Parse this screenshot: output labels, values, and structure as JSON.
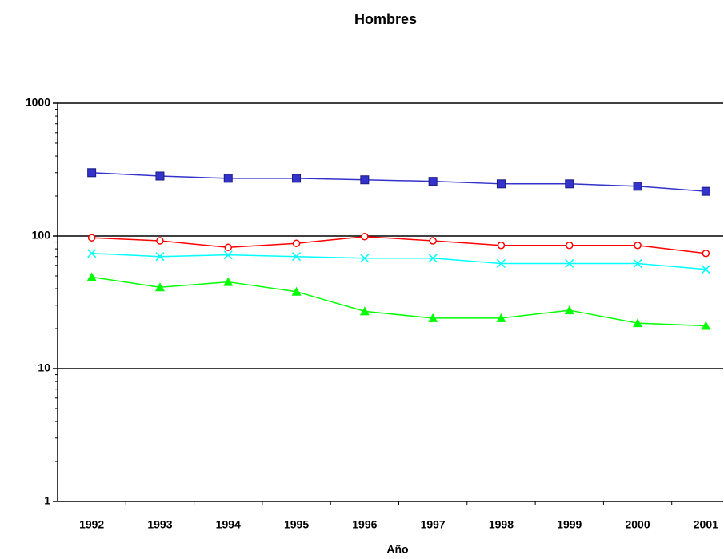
{
  "chart_data": {
    "type": "line",
    "title": "Hombres",
    "x_label": "Año",
    "categories": [
      "1992",
      "1993",
      "1994",
      "1995",
      "1996",
      "1997",
      "1998",
      "1999",
      "2000",
      "2001"
    ],
    "series": [
      {
        "color": "#3333cc",
        "marker": "square",
        "values": [
          300,
          283,
          272,
          272,
          265,
          258,
          247,
          247,
          237,
          217
        ]
      },
      {
        "color": "#ff0000",
        "marker": "circle",
        "values": [
          97,
          92,
          82,
          88,
          99,
          92,
          85,
          85,
          85,
          74
        ]
      },
      {
        "color": "#00ffff",
        "marker": "x",
        "values": [
          74,
          70,
          72,
          70,
          68,
          68,
          62,
          62,
          62,
          56
        ]
      },
      {
        "color": "#00ff00",
        "marker": "triangle",
        "values": [
          49,
          41,
          45,
          38,
          27,
          24,
          24,
          27.5,
          22,
          21
        ]
      }
    ],
    "ylim": [
      1,
      1000
    ],
    "yticks": [
      1,
      10,
      100,
      1000
    ],
    "log_y": true,
    "grid": true
  }
}
